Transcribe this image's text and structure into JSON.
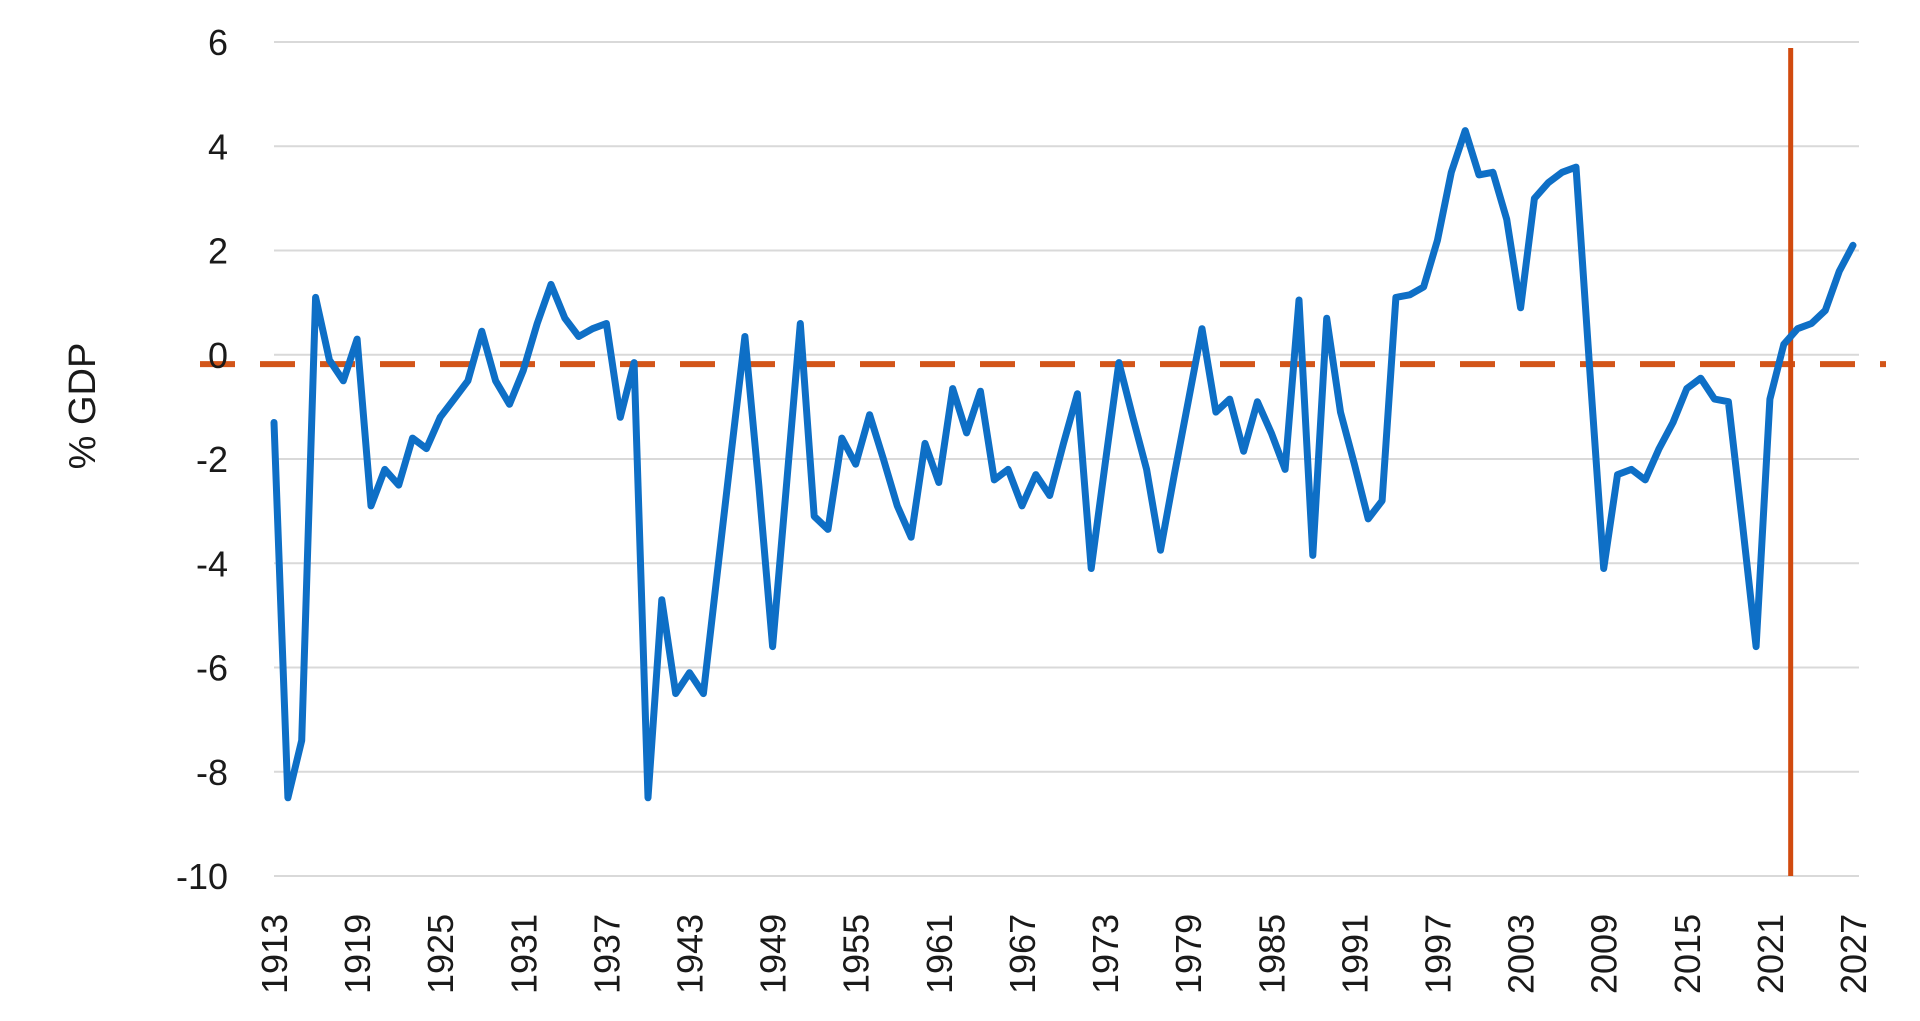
{
  "chart_data": {
    "type": "line",
    "title": "",
    "ylabel": "% GDP",
    "xlabel": "",
    "ylim": [
      -10,
      6
    ],
    "yticks": [
      6,
      4,
      2,
      0,
      -2,
      -4,
      -6,
      -8,
      -10
    ],
    "ytick_labels": [
      "6",
      "4",
      "2",
      "0",
      "-2",
      "-4",
      "-6",
      "-8",
      "-10"
    ],
    "xtick_labels": [
      "1913",
      "1919",
      "1925",
      "1931",
      "1937",
      "1943",
      "1949",
      "1955",
      "1961",
      "1967",
      "1973",
      "1979",
      "1985",
      "1991",
      "1997",
      "2003",
      "2009",
      "2015",
      "2021",
      "2027"
    ],
    "xtick_years": [
      1913,
      1919,
      1925,
      1931,
      1937,
      1943,
      1949,
      1955,
      1961,
      1967,
      1973,
      1979,
      1985,
      1991,
      1997,
      2003,
      2009,
      2015,
      2021,
      2027
    ],
    "grid": true,
    "legend": "none",
    "x_start_year": 1913,
    "x_end_year": 2027,
    "series": [
      {
        "values": [
          -1.3,
          -8.5,
          -7.4,
          1.1,
          -0.1,
          -0.5,
          0.3,
          -2.9,
          -2.2,
          -2.5,
          -1.6,
          -1.8,
          -1.2,
          -0.85,
          -0.5,
          0.45,
          -0.5,
          -0.95,
          -0.3,
          0.6,
          1.35,
          0.7,
          0.35,
          0.5,
          0.6,
          -1.2,
          -0.15,
          -8.5,
          -4.7,
          -6.5,
          -6.1,
          -6.5,
          -4.2,
          -1.9,
          0.35,
          -2.5,
          -5.6,
          -2.5,
          0.6,
          -3.1,
          -3.35,
          -1.6,
          -2.1,
          -1.15,
          -2.0,
          -2.9,
          -3.5,
          -1.7,
          -2.45,
          -0.65,
          -1.5,
          -0.7,
          -2.4,
          -2.2,
          -2.9,
          -2.3,
          -2.7,
          -1.7,
          -0.75,
          -4.1,
          -2.1,
          -0.15,
          -1.2,
          -2.2,
          -3.75,
          -2.3,
          -0.9,
          0.5,
          -1.1,
          -0.85,
          -1.85,
          -0.9,
          -1.5,
          -2.2,
          1.05,
          -3.85,
          0.7,
          -1.1,
          -2.1,
          -3.15,
          -2.8,
          1.1,
          1.15,
          1.3,
          2.2,
          3.5,
          4.3,
          3.45,
          3.5,
          2.6,
          0.9,
          3.0,
          3.3,
          3.5,
          3.6,
          -0.3,
          -4.1,
          -2.3,
          -2.2,
          -2.4,
          -1.8,
          -1.3,
          -0.65,
          -0.45,
          -0.85,
          -0.9,
          -3.2,
          -5.6,
          -0.85,
          0.2,
          0.5,
          0.6,
          0.85,
          1.6,
          2.1
        ]
      }
    ],
    "reference_lines": {
      "dashed_horizontal": {
        "value": -0.18,
        "style": "dashed",
        "color": "#d25519"
      },
      "vertical": {
        "year": 2022.5,
        "style": "solid",
        "color": "#d14a0e"
      }
    },
    "colors": {
      "line": "#0e6fc6",
      "grid": "#d9d9d9",
      "text": "#1a1a1a",
      "background": "#ffffff"
    }
  }
}
